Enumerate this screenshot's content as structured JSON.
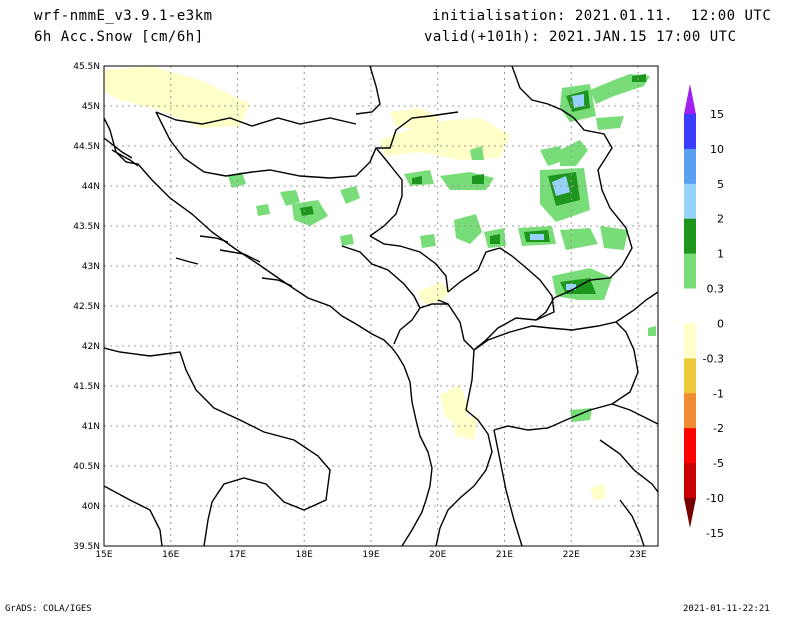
{
  "header": {
    "model": "wrf-nmmE_v3.9.1-e3km",
    "field": "6h Acc.Snow [cm/6h]",
    "init": "initialisation: 2021.01.11.  12:00 UTC",
    "valid": "valid(+101h): 2021.JAN.15 17:00 UTC"
  },
  "map": {
    "lat_labels": [
      "45.5N",
      "45N",
      "44.5N",
      "44N",
      "43.5N",
      "43N",
      "42.5N",
      "42N",
      "41.5N",
      "41N",
      "40.5N",
      "40N",
      "39.5N"
    ],
    "lon_labels": [
      "15E",
      "16E",
      "17E",
      "18E",
      "19E",
      "20E",
      "21E",
      "22E",
      "23E"
    ],
    "lat_range": [
      39.5,
      45.5
    ],
    "lon_range": [
      15,
      23.3
    ],
    "grid": true
  },
  "legend": {
    "labels": [
      "15",
      "10",
      "5",
      "2",
      "1",
      "0.3",
      "0",
      "-0.3",
      "-1",
      "-2",
      "-5",
      "-10",
      "-15"
    ],
    "colors": [
      "#a020f0",
      "#3c3cff",
      "#5aa0f0",
      "#96d2fa",
      "#1e961e",
      "#78dc78",
      "#ffffff",
      "#ffffc8",
      "#f0c83c",
      "#f08c32",
      "#ff0000",
      "#c80000",
      "#780000"
    ]
  },
  "footer": {
    "credit": "GrADS: COLA/IGES",
    "timestamp": "2021-01-11-22:21"
  }
}
